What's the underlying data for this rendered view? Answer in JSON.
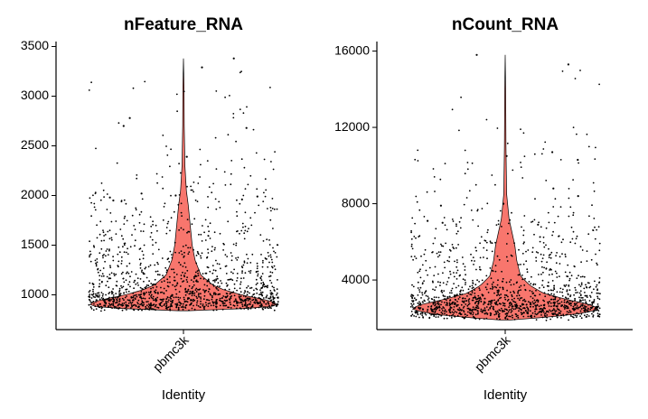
{
  "chart_data": [
    {
      "type": "violin",
      "title": "nFeature_RNA",
      "xlabel": "Identity",
      "ylabel": "",
      "categories": [
        "pbmc3k"
      ],
      "ylim": [
        650,
        3550
      ],
      "yticks": [
        1000,
        1500,
        2000,
        2500,
        3000,
        3500
      ],
      "ytick_labels": [
        "1000",
        "1500",
        "2000",
        "2500",
        "3000",
        "3500"
      ],
      "grid": false,
      "legend": "none",
      "fill_color": "#f8766d",
      "point_color": "#000000",
      "series": [
        {
          "category": "pbmc3k",
          "min": 840,
          "max": 3380,
          "median": 950,
          "density_profile": [
            {
              "y": 840,
              "w": 0.05
            },
            {
              "y": 860,
              "w": 0.6
            },
            {
              "y": 880,
              "w": 0.9
            },
            {
              "y": 900,
              "w": 0.97
            },
            {
              "y": 930,
              "w": 0.93
            },
            {
              "y": 960,
              "w": 0.8
            },
            {
              "y": 1000,
              "w": 0.6
            },
            {
              "y": 1050,
              "w": 0.42
            },
            {
              "y": 1100,
              "w": 0.3
            },
            {
              "y": 1200,
              "w": 0.18
            },
            {
              "y": 1350,
              "w": 0.12
            },
            {
              "y": 1500,
              "w": 0.09
            },
            {
              "y": 1700,
              "w": 0.07
            },
            {
              "y": 1900,
              "w": 0.05
            },
            {
              "y": 2050,
              "w": 0.03
            },
            {
              "y": 2300,
              "w": 0.015
            },
            {
              "y": 2700,
              "w": 0.008
            },
            {
              "y": 3100,
              "w": 0.006
            },
            {
              "y": 3380,
              "w": 0.0
            }
          ],
          "outliers": [
            3380,
            3290,
            2780,
            2700,
            2680,
            2390,
            2020,
            2000,
            1990,
            1980,
            1960,
            1950
          ],
          "n_points": 2700
        }
      ]
    },
    {
      "type": "violin",
      "title": "nCount_RNA",
      "xlabel": "Identity",
      "ylabel": "",
      "categories": [
        "pbmc3k"
      ],
      "ylim": [
        1400,
        16500
      ],
      "yticks": [
        4000,
        8000,
        12000,
        16000
      ],
      "ytick_labels": [
        "4000",
        "8000",
        "12000",
        "16000"
      ],
      "grid": false,
      "legend": "none",
      "fill_color": "#f8766d",
      "point_color": "#000000",
      "series": [
        {
          "category": "pbmc3k",
          "min": 1900,
          "max": 15800,
          "median": 2400,
          "density_profile": [
            {
              "y": 1900,
              "w": 0.05
            },
            {
              "y": 2100,
              "w": 0.55
            },
            {
              "y": 2300,
              "w": 0.85
            },
            {
              "y": 2500,
              "w": 0.97
            },
            {
              "y": 2700,
              "w": 0.88
            },
            {
              "y": 3000,
              "w": 0.62
            },
            {
              "y": 3300,
              "w": 0.4
            },
            {
              "y": 3700,
              "w": 0.26
            },
            {
              "y": 4200,
              "w": 0.16
            },
            {
              "y": 5000,
              "w": 0.12
            },
            {
              "y": 5800,
              "w": 0.1
            },
            {
              "y": 6500,
              "w": 0.07
            },
            {
              "y": 7200,
              "w": 0.04
            },
            {
              "y": 8500,
              "w": 0.015
            },
            {
              "y": 11000,
              "w": 0.008
            },
            {
              "y": 14000,
              "w": 0.005
            },
            {
              "y": 15800,
              "w": 0.0
            }
          ],
          "outliers": [
            15800,
            15300,
            10700,
            10500,
            10300,
            8800,
            8400,
            8000,
            7900,
            7100,
            7000,
            6900
          ],
          "n_points": 2700
        }
      ]
    }
  ]
}
